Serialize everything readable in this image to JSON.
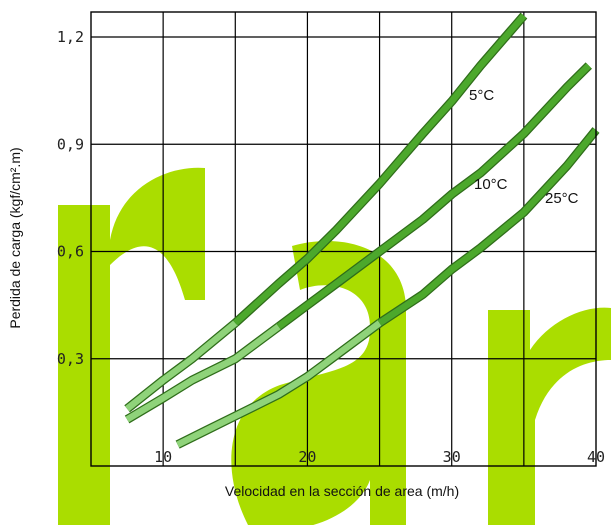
{
  "chart_data": {
    "type": "line",
    "xlabel": "Velocidad en la sección de area (m/h)",
    "ylabel": "Perdida de carga (kgf/cm².m)",
    "xlim": [
      5,
      40
    ],
    "ylim": [
      0,
      1.27
    ],
    "x_ticks": [
      10,
      20,
      30,
      40
    ],
    "x_tick_labels": [
      "10",
      "20",
      "30",
      "40"
    ],
    "y_ticks": [
      0.3,
      0.6,
      0.9,
      1.2
    ],
    "y_tick_labels": [
      "0,3",
      "0,6",
      "0,9",
      "1,2"
    ],
    "x_grid": [
      10,
      15,
      20,
      25,
      30,
      35
    ],
    "grid": true,
    "series": [
      {
        "name": "5°C",
        "x": [
          7.5,
          10,
          12,
          15,
          18,
          20,
          22,
          25,
          28,
          30,
          32,
          35
        ],
        "y": [
          0.16,
          0.24,
          0.3,
          0.4,
          0.51,
          0.58,
          0.66,
          0.79,
          0.93,
          1.02,
          1.12,
          1.26
        ],
        "light_until_x": 15,
        "color": "#4ca82c",
        "light_color": "#8fd37a"
      },
      {
        "name": "10°C",
        "x": [
          7.5,
          10,
          12,
          15,
          18,
          20,
          22,
          25,
          28,
          30,
          32,
          35,
          38,
          39.5
        ],
        "y": [
          0.13,
          0.19,
          0.24,
          0.3,
          0.39,
          0.45,
          0.51,
          0.6,
          0.69,
          0.76,
          0.82,
          0.93,
          1.06,
          1.12
        ],
        "light_until_x": 18,
        "color": "#4ca82c",
        "light_color": "#8fd37a"
      },
      {
        "name": "25°C",
        "x": [
          11,
          13,
          15,
          18,
          20,
          22,
          25,
          28,
          30,
          32,
          35,
          38,
          40
        ],
        "y": [
          0.06,
          0.1,
          0.14,
          0.2,
          0.25,
          0.31,
          0.4,
          0.48,
          0.55,
          0.61,
          0.71,
          0.84,
          0.94
        ],
        "light_until_x": 25,
        "color": "#4ca82c",
        "light_color": "#8fd37a"
      }
    ],
    "watermark_color": "#aadd00"
  }
}
